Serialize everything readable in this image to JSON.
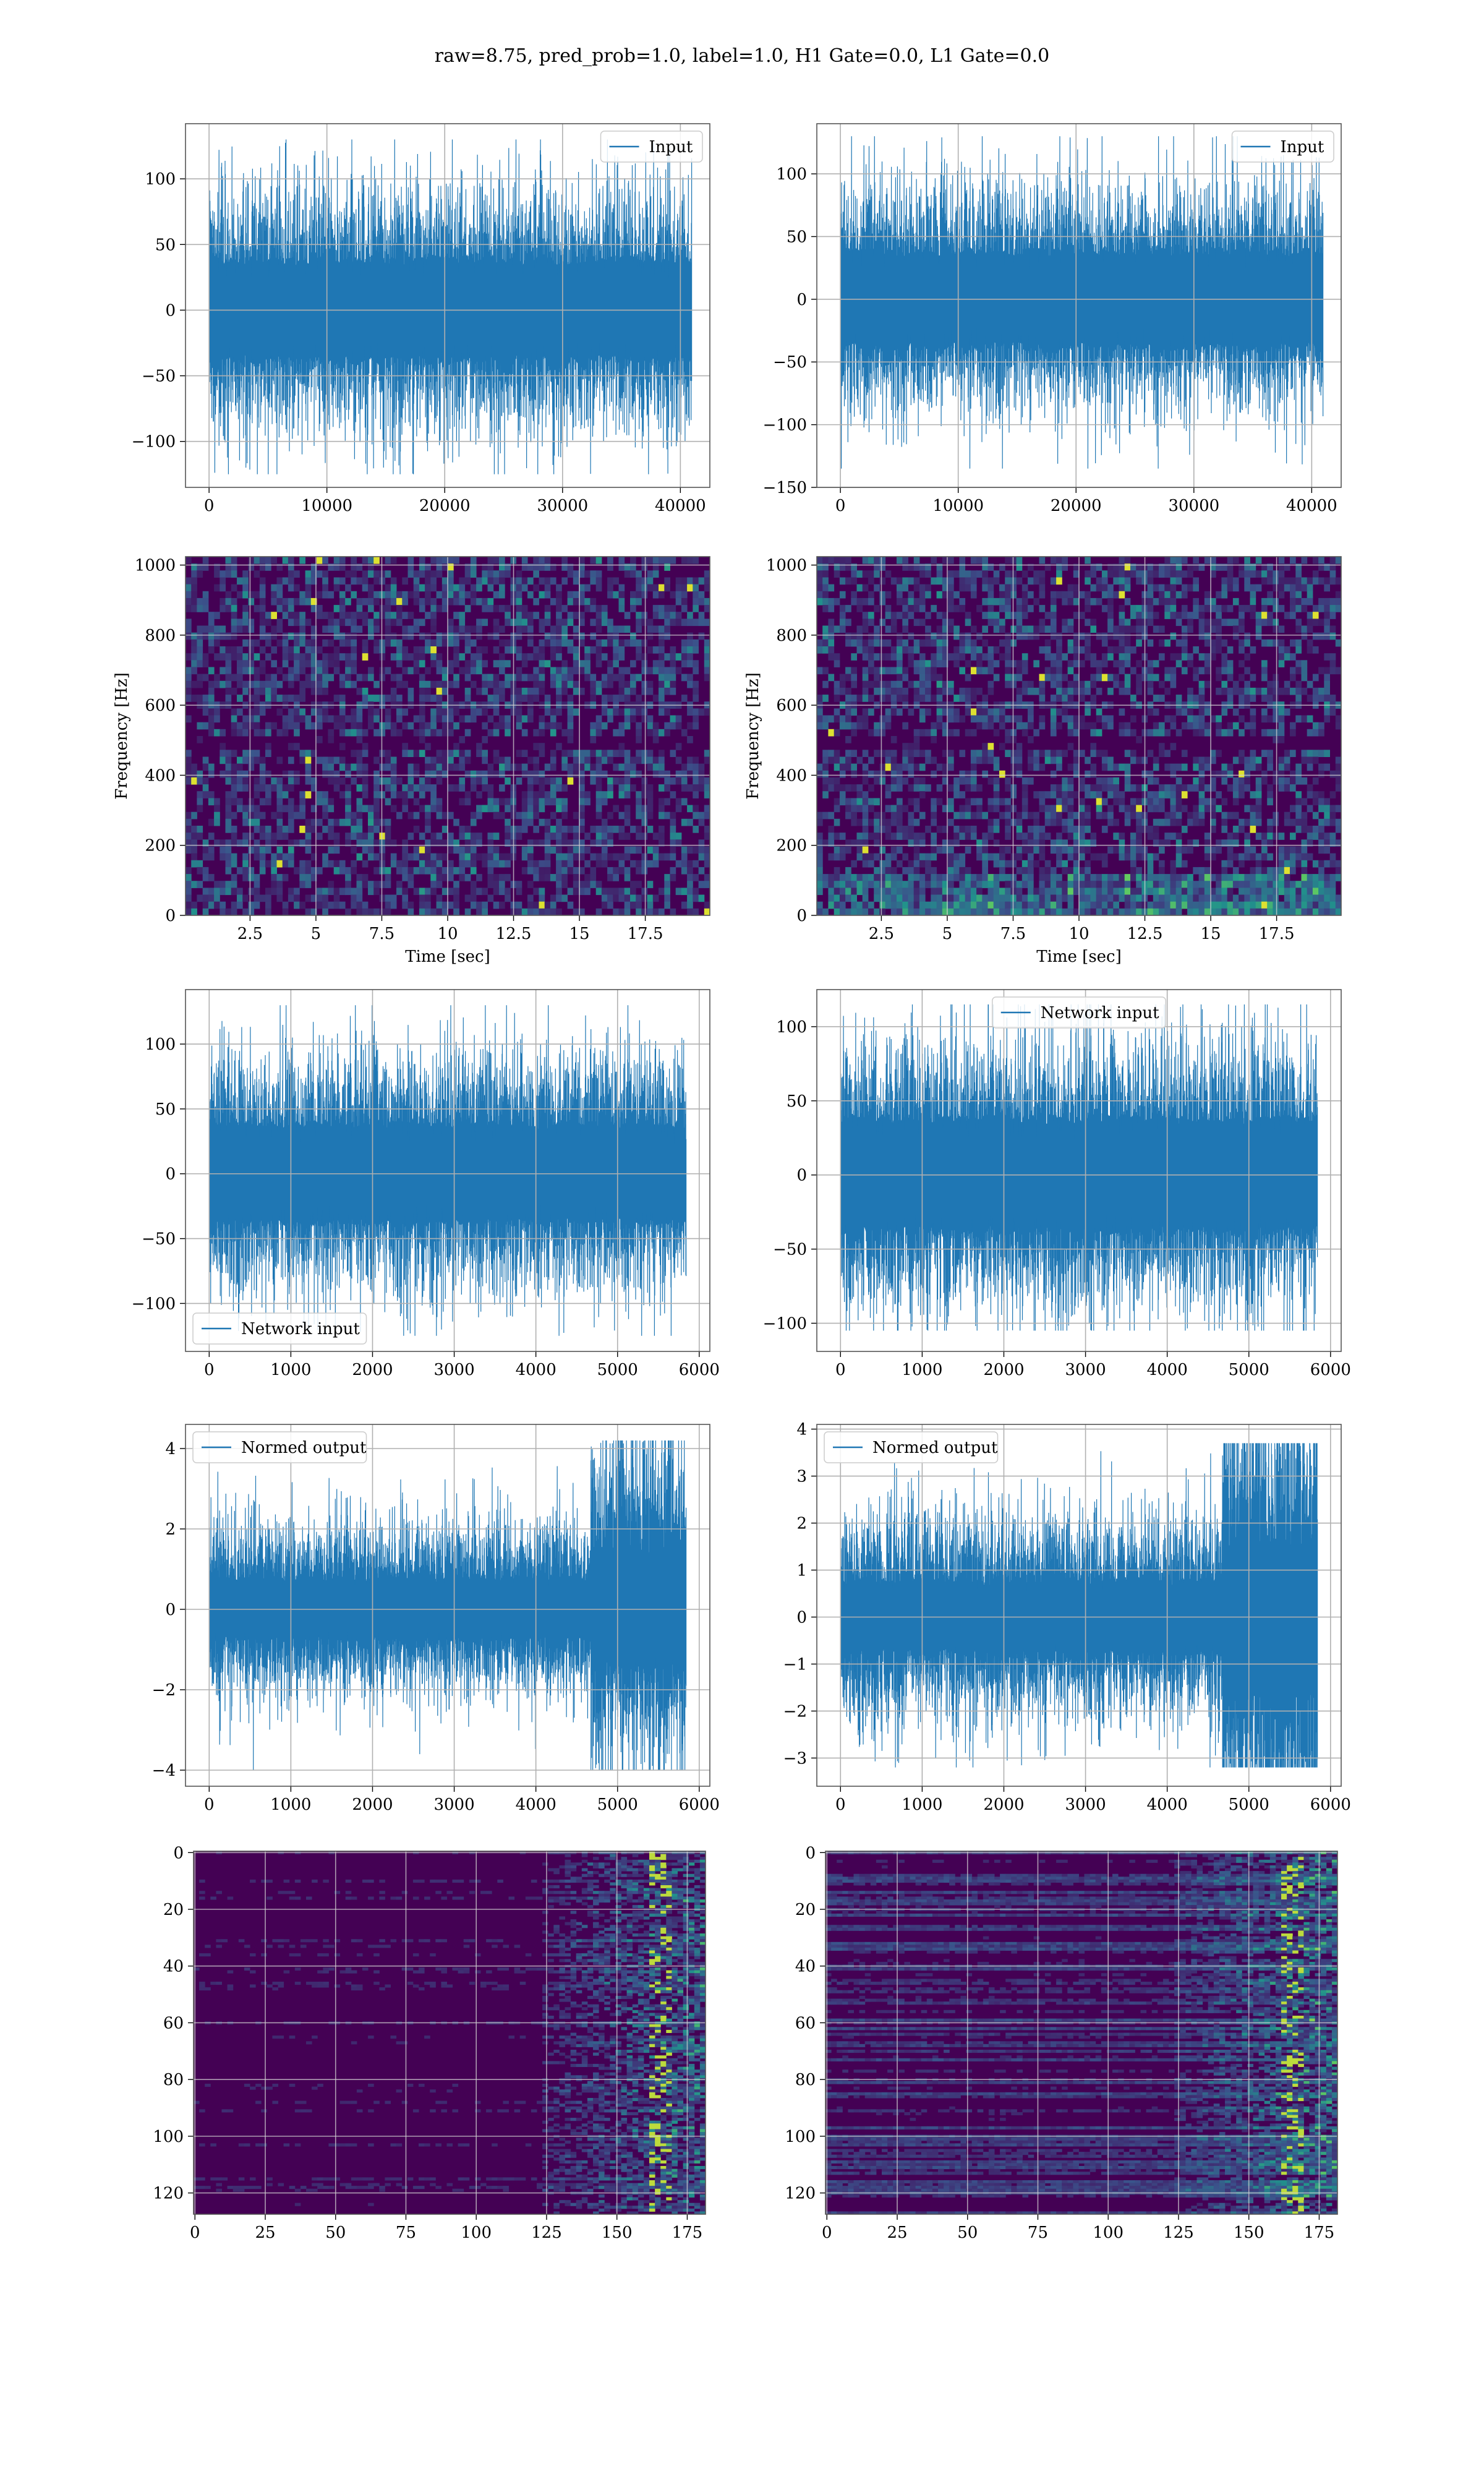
{
  "figure": {
    "title": "raw=8.75, pred_prob=1.0, label=1.0, H1 Gate=0.0, L1 Gate=0.0"
  },
  "colors": {
    "series": "#1f77b4",
    "grid": "#b0b0b0",
    "viridis": [
      "#440154",
      "#3b528b",
      "#21918c",
      "#5ec962",
      "#fde725"
    ]
  },
  "chart_data": [
    {
      "id": "h1-input",
      "type": "line",
      "series": [
        {
          "name": "Input",
          "n_samples": 40960,
          "amplitude_range": [
            -125,
            130
          ]
        }
      ],
      "xlim": [
        -2000,
        42500
      ],
      "ylim": [
        -135,
        142
      ],
      "xticks": [
        0,
        10000,
        20000,
        30000,
        40000
      ],
      "yticks": [
        -100,
        -50,
        0,
        50,
        100
      ],
      "legend": "upper right",
      "grid": true,
      "xlabel": "",
      "ylabel": ""
    },
    {
      "id": "l1-input",
      "type": "line",
      "series": [
        {
          "name": "Input",
          "n_samples": 40960,
          "amplitude_range": [
            -135,
            130
          ]
        }
      ],
      "xlim": [
        -2000,
        42500
      ],
      "ylim": [
        -150,
        140
      ],
      "xticks": [
        0,
        10000,
        20000,
        30000,
        40000
      ],
      "yticks": [
        -150,
        -100,
        -50,
        0,
        50,
        100
      ],
      "legend": "upper right",
      "grid": true,
      "xlabel": "",
      "ylabel": ""
    },
    {
      "id": "h1-spectrogram",
      "type": "heatmap",
      "xlim": [
        0.05,
        19.95
      ],
      "ylim": [
        0,
        1024
      ],
      "xticks": [
        2.5,
        5.0,
        7.5,
        10.0,
        12.5,
        15.0,
        17.5
      ],
      "yticks": [
        0,
        200,
        400,
        600,
        800,
        1000
      ],
      "xlabel": "Time [sec]",
      "ylabel": "Frequency [Hz]",
      "colormap": "viridis",
      "grid": true
    },
    {
      "id": "l1-spectrogram",
      "type": "heatmap",
      "xlim": [
        0.05,
        19.95
      ],
      "ylim": [
        0,
        1024
      ],
      "xticks": [
        2.5,
        5.0,
        7.5,
        10.0,
        12.5,
        15.0,
        17.5
      ],
      "yticks": [
        0,
        200,
        400,
        600,
        800,
        1000
      ],
      "xlabel": "Time [sec]",
      "ylabel": "Frequency [Hz]",
      "colormap": "viridis",
      "grid": true
    },
    {
      "id": "h1-network-input",
      "type": "line",
      "series": [
        {
          "name": "Network input",
          "n_samples": 5840,
          "amplitude_range": [
            -125,
            130
          ]
        }
      ],
      "xlim": [
        -290,
        6130
      ],
      "ylim": [
        -137,
        142
      ],
      "xticks": [
        0,
        1000,
        2000,
        3000,
        4000,
        5000,
        6000
      ],
      "yticks": [
        -100,
        -50,
        0,
        50,
        100
      ],
      "legend": "lower left",
      "grid": true,
      "xlabel": "",
      "ylabel": ""
    },
    {
      "id": "l1-network-input",
      "type": "line",
      "series": [
        {
          "name": "Network input",
          "n_samples": 5840,
          "amplitude_range": [
            -105,
            115
          ]
        }
      ],
      "xlim": [
        -290,
        6130
      ],
      "ylim": [
        -119,
        125
      ],
      "xticks": [
        0,
        1000,
        2000,
        3000,
        4000,
        5000,
        6000
      ],
      "yticks": [
        -100,
        -50,
        0,
        50,
        100
      ],
      "legend": "upper center",
      "grid": true,
      "xlabel": "",
      "ylabel": ""
    },
    {
      "id": "h1-normed-output",
      "type": "line",
      "series": [
        {
          "name": "Normed output",
          "n_samples": 5840,
          "amplitude_range": [
            -4.0,
            4.2
          ]
        }
      ],
      "xlim": [
        -290,
        6130
      ],
      "ylim": [
        -4.4,
        4.6
      ],
      "xticks": [
        0,
        1000,
        2000,
        3000,
        4000,
        5000,
        6000
      ],
      "yticks": [
        -4,
        -2,
        0,
        2,
        4
      ],
      "legend": "upper left",
      "grid": true,
      "xlabel": "",
      "ylabel": ""
    },
    {
      "id": "l1-normed-output",
      "type": "line",
      "series": [
        {
          "name": "Normed output",
          "n_samples": 5840,
          "amplitude_range": [
            -3.2,
            3.7
          ]
        }
      ],
      "xlim": [
        -290,
        6130
      ],
      "ylim": [
        -3.6,
        4.1
      ],
      "xticks": [
        0,
        1000,
        2000,
        3000,
        4000,
        5000,
        6000
      ],
      "yticks": [
        -3,
        -2,
        -1,
        0,
        1,
        2,
        3,
        4
      ],
      "legend": "upper left",
      "grid": true,
      "xlabel": "",
      "ylabel": ""
    },
    {
      "id": "h1-feature-map",
      "type": "heatmap",
      "rows": 128,
      "cols": 182,
      "xlim": [
        -0.5,
        181.5
      ],
      "ylim": [
        127.5,
        -0.5
      ],
      "xticks": [
        0,
        25,
        50,
        75,
        100,
        125,
        150,
        175
      ],
      "yticks": [
        0,
        20,
        40,
        60,
        80,
        100,
        120
      ],
      "colormap": "viridis",
      "grid": true,
      "xlabel": "",
      "ylabel": ""
    },
    {
      "id": "l1-feature-map",
      "type": "heatmap",
      "rows": 128,
      "cols": 182,
      "xlim": [
        -0.5,
        181.5
      ],
      "ylim": [
        127.5,
        -0.5
      ],
      "xticks": [
        0,
        25,
        50,
        75,
        100,
        125,
        150,
        175
      ],
      "yticks": [
        0,
        20,
        40,
        60,
        80,
        100,
        120
      ],
      "colormap": "viridis",
      "grid": true,
      "xlabel": "",
      "ylabel": ""
    }
  ]
}
